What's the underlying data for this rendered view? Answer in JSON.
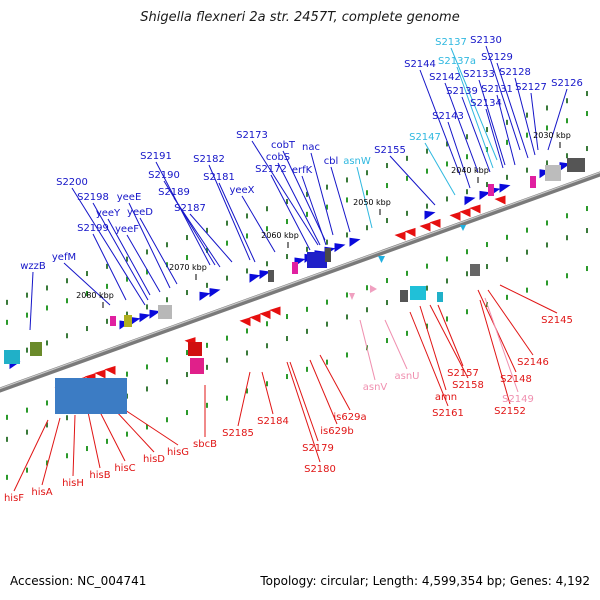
{
  "title": "Shigella flexneri 2a str. 2457T, complete genome",
  "footer": {
    "accession": "Accession: NC_004741",
    "summary": "Topology: circular; Length: 4,599,354 bp; Genes: 4,192"
  },
  "colors": {
    "label_top": "#1515c8",
    "label_top_rna": "#2fb8e0",
    "label_bottom": "#e01515",
    "label_bottom_rna": "#f090b0"
  },
  "kbp_ticks": [
    "2030 kbp",
    "2040 kbp",
    "2050 kbp",
    "2060 kbp",
    "2070 kbp",
    "2080 kbp"
  ],
  "genes_top": [
    "S2130",
    "S2137",
    "S2129",
    "S2137a",
    "S2144",
    "S2128",
    "S2133",
    "S2142",
    "S2126",
    "S2131",
    "S2127",
    "S2139",
    "S2134",
    "S2143",
    "S2147",
    "S2173",
    "S2155",
    "cobT",
    "nac",
    "cobS",
    "cbl",
    "asnW",
    "S2191",
    "S2172",
    "erfK",
    "S2182",
    "S2190",
    "S2181",
    "S2200",
    "yeeX",
    "S2189",
    "S2198",
    "yeeE",
    "S2187",
    "yeeY",
    "yeeD",
    "S2199",
    "yeeF",
    "yefM",
    "wzzB"
  ],
  "genes_bottom": [
    "S2145",
    "S2146",
    "S2157",
    "S2148",
    "S2158",
    "S2149",
    "asnU",
    "S2152",
    "amn",
    "asnV",
    "S2161",
    "is629a",
    "S2184",
    "is629b",
    "S2185",
    "S2179",
    "S2180",
    "sbcB",
    "hisG",
    "hisD",
    "hisC",
    "hisB",
    "hisH",
    "hisA",
    "hisF"
  ]
}
